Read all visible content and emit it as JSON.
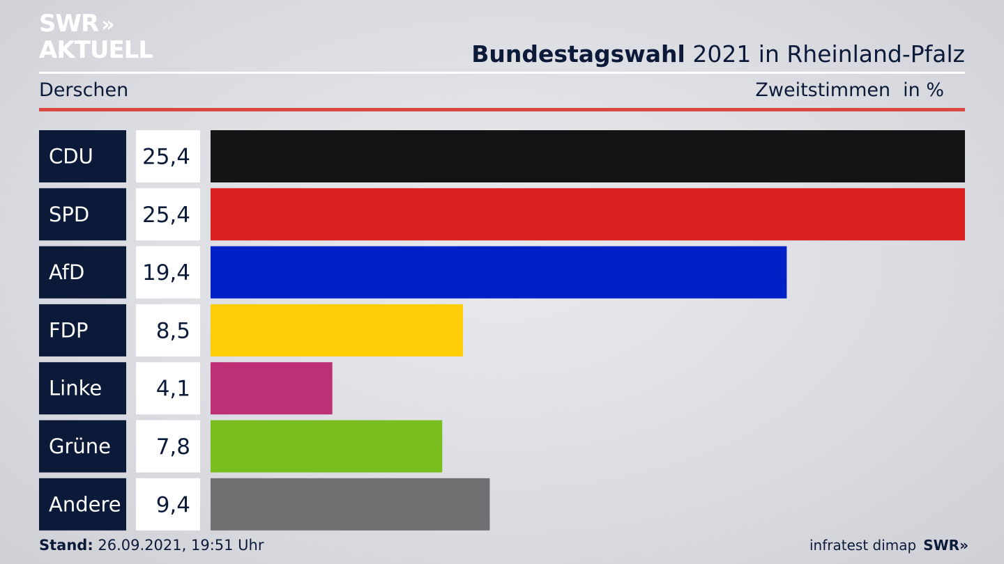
{
  "brand": {
    "line1": "SWR",
    "arrows": "»",
    "line2": "AKTUELL"
  },
  "header": {
    "title_bold": "Bundestagswahl",
    "title_rest": " 2021 in Rheinland-Pfalz",
    "subtitle": "Derschen",
    "measure": "Zweitstimmen",
    "unit": "in %"
  },
  "footer": {
    "stand_label": "Stand:",
    "stand_value": " 26.09.2021, 19:51 Uhr",
    "source": "infratest dimap",
    "swr": "SWR",
    "swr_arrows": "»"
  },
  "chart_data": {
    "type": "bar",
    "orientation": "horizontal",
    "categories": [
      "CDU",
      "SPD",
      "AfD",
      "FDP",
      "Linke",
      "Grüne",
      "Andere"
    ],
    "values": [
      25.4,
      25.4,
      19.4,
      8.5,
      4.1,
      7.8,
      9.4
    ],
    "value_labels": [
      "25,4",
      "25,4",
      "19,4",
      "8,5",
      "4,1",
      "7,8",
      "9,4"
    ],
    "colors": [
      "#141414",
      "#d91f1f",
      "#0020c7",
      "#ffcc08",
      "#be3075",
      "#78be1e",
      "#707072"
    ],
    "xlim": [
      0,
      25.4
    ],
    "grid": false,
    "legend": "none"
  },
  "colors": {
    "label_box": "#0c1a3a",
    "value_box": "#ffffff",
    "accent_red": "#d9473e"
  }
}
